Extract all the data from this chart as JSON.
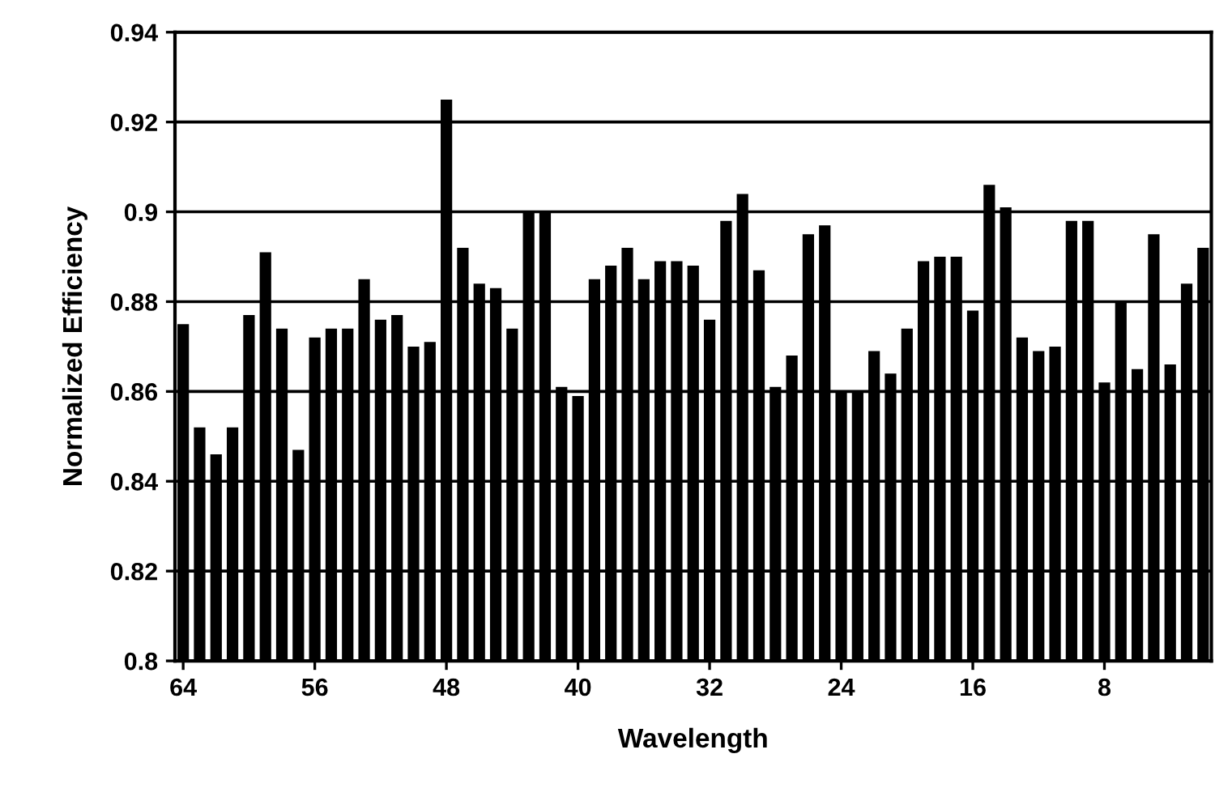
{
  "chart_data": {
    "type": "bar",
    "xlabel": "Wavelength",
    "ylabel": "Normalized Efficiency",
    "categories": [
      "64",
      null,
      null,
      null,
      null,
      null,
      null,
      null,
      "56",
      null,
      null,
      null,
      null,
      null,
      null,
      null,
      "48",
      null,
      null,
      null,
      null,
      null,
      null,
      null,
      "40",
      null,
      null,
      null,
      null,
      null,
      null,
      null,
      "32",
      null,
      null,
      null,
      null,
      null,
      null,
      null,
      "24",
      null,
      null,
      null,
      null,
      null,
      null,
      null,
      "16",
      null,
      null,
      null,
      null,
      null,
      null,
      null,
      "8",
      null,
      null,
      null,
      null,
      null,
      null
    ],
    "values": [
      0.875,
      0.852,
      0.846,
      0.852,
      0.877,
      0.891,
      0.874,
      0.847,
      0.872,
      0.874,
      0.874,
      0.885,
      0.876,
      0.877,
      0.87,
      0.871,
      0.925,
      0.892,
      0.884,
      0.883,
      0.874,
      0.9,
      0.9,
      0.861,
      0.859,
      0.885,
      0.888,
      0.892,
      0.885,
      0.889,
      0.889,
      0.888,
      0.876,
      0.898,
      0.904,
      0.887,
      0.861,
      0.868,
      0.895,
      0.897,
      0.86,
      0.86,
      0.869,
      0.864,
      0.874,
      0.889,
      0.89,
      0.89,
      0.878,
      0.906,
      0.901,
      0.872,
      0.869,
      0.87,
      0.898,
      0.898,
      0.862,
      0.88,
      0.865,
      0.895,
      0.866,
      0.884,
      0.892
    ],
    "color": "#000000",
    "ylim": [
      0.8,
      0.94
    ],
    "yticks": [
      0.8,
      0.82,
      0.84,
      0.86,
      0.88,
      0.9,
      0.92,
      0.94
    ],
    "grid": "y",
    "legend": false
  }
}
